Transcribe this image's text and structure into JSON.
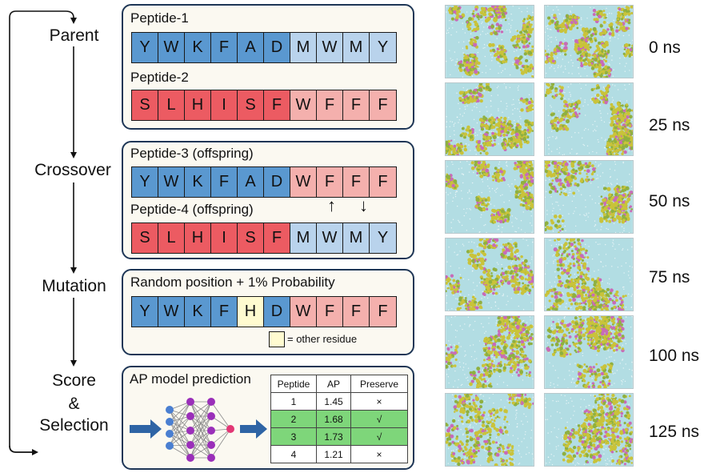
{
  "steps": [
    "Parent",
    "Crossover",
    "Mutation",
    "Score",
    "&",
    "Selection"
  ],
  "parent_panel": {
    "peptide1": {
      "label": "Peptide-1",
      "residues": [
        "Y",
        "W",
        "K",
        "F",
        "A",
        "D",
        "M",
        "W",
        "M",
        "Y"
      ]
    },
    "peptide2": {
      "label": "Peptide-2",
      "residues": [
        "S",
        "L",
        "H",
        "I",
        "S",
        "F",
        "W",
        "F",
        "F",
        "F"
      ]
    }
  },
  "crossover_panel": {
    "peptide3": {
      "label": "Peptide-3 (offspring)",
      "residues": [
        "Y",
        "W",
        "K",
        "F",
        "A",
        "D",
        "W",
        "F",
        "F",
        "F"
      ]
    },
    "peptide4": {
      "label": "Peptide-4 (offspring)",
      "residues": [
        "S",
        "L",
        "H",
        "I",
        "S",
        "F",
        "M",
        "W",
        "M",
        "Y"
      ]
    },
    "arrows": [
      "↑",
      "↓"
    ]
  },
  "mutation_panel": {
    "title": "Random position + 1% Probability",
    "residues": [
      "Y",
      "W",
      "K",
      "F",
      "H",
      "D",
      "W",
      "F",
      "F",
      "F"
    ],
    "legend": "= other residue"
  },
  "score_panel": {
    "title": "AP model prediction",
    "table": {
      "headers": [
        "Peptide",
        "AP",
        "Preserve"
      ],
      "rows": [
        {
          "peptide": "1",
          "ap": "1.45",
          "preserve": "×",
          "selected": false
        },
        {
          "peptide": "2",
          "ap": "1.68",
          "preserve": "√",
          "selected": true
        },
        {
          "peptide": "3",
          "ap": "1.73",
          "preserve": "√",
          "selected": true
        },
        {
          "peptide": "4",
          "ap": "1.21",
          "preserve": "×",
          "selected": false
        }
      ]
    }
  },
  "simulation": {
    "times": [
      "0 ns",
      "25 ns",
      "50 ns",
      "75 ns",
      "100 ns",
      "125 ns"
    ]
  },
  "colors": {
    "dark_blue": "#5a98d0",
    "light_blue": "#b9d3ec",
    "dark_red": "#ec5b62",
    "light_red": "#f4b0ad",
    "mutation": "#fffbd0",
    "selected_row": "#7ed67a",
    "panel_border": "#1e3656",
    "arrow_blue": "#2e64a5",
    "node_purple": "#9a2fb9",
    "node_pink": "#e23775",
    "node_blue": "#4a7fd1",
    "water": "#b2dde3",
    "aggregate": "#c9c33a"
  }
}
